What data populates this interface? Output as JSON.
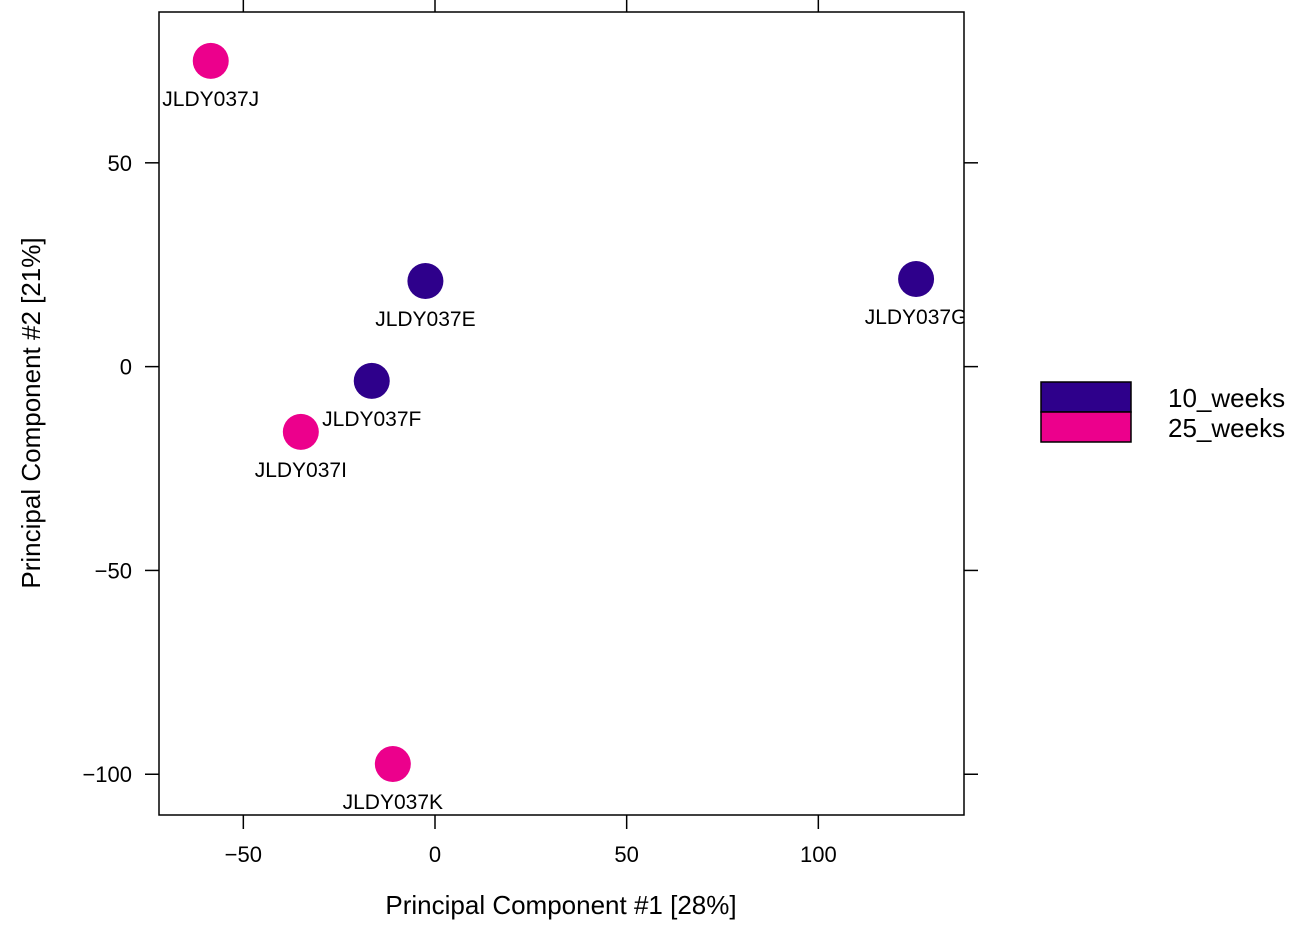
{
  "chart_data": {
    "type": "scatter",
    "xlabel": "Principal Component #1 [28%]",
    "ylabel": "Principal Component #2 [21%]",
    "xlim": [
      -72,
      138
    ],
    "ylim": [
      -110,
      87
    ],
    "xticks": [
      -50,
      0,
      50,
      100
    ],
    "yticks": [
      -100,
      -50,
      0,
      50
    ],
    "x_tick_labels": [
      "−50",
      "0",
      "50",
      "100"
    ],
    "y_tick_labels": [
      "−100",
      "−50",
      "0",
      "50"
    ],
    "legend_position": "right",
    "series": [
      {
        "name": "10_weeks",
        "color": "#2E008B",
        "points": [
          {
            "label": "JLDY037E",
            "x": -2.5,
            "y": 21
          },
          {
            "label": "JLDY037F",
            "x": -16.5,
            "y": -3.5
          },
          {
            "label": "JLDY037G",
            "x": 125.5,
            "y": 21.5
          }
        ]
      },
      {
        "name": "25_weeks",
        "color": "#EC008C",
        "points": [
          {
            "label": "JLDY037J",
            "x": -58.5,
            "y": 75
          },
          {
            "label": "JLDY037I",
            "x": -35,
            "y": -16
          },
          {
            "label": "JLDY037K",
            "x": -11,
            "y": -97.5
          }
        ]
      }
    ]
  }
}
